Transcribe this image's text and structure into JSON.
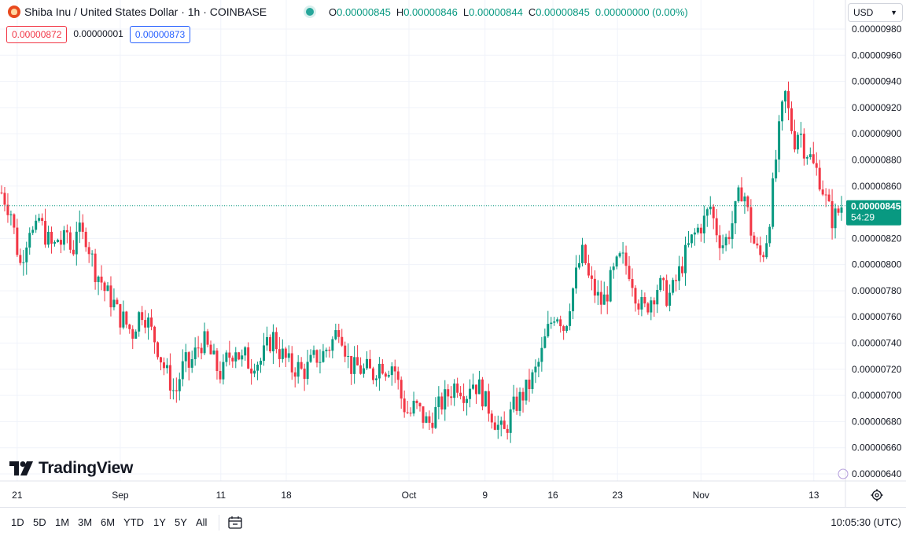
{
  "header": {
    "symbol_title": "Shiba Inu / United States Dollar · 1h · COINBASE",
    "ohlc": [
      {
        "k": "O",
        "v": "0.00000845"
      },
      {
        "k": "H",
        "v": "0.00000846"
      },
      {
        "k": "L",
        "v": "0.00000844"
      },
      {
        "k": "C",
        "v": "0.00000845"
      }
    ],
    "change": "0.00000000 (0.00%)"
  },
  "chips": {
    "sell": "0.00000872",
    "spread": "0.00000001",
    "buy": "0.00000873"
  },
  "currency": {
    "selected": "USD"
  },
  "bottom_bar": {
    "ranges": [
      "1D",
      "5D",
      "1M",
      "3M",
      "6M",
      "YTD",
      "1Y",
      "5Y",
      "All"
    ],
    "clock": "10:05:30 (UTC)"
  },
  "branding": {
    "name": "TradingView"
  },
  "colors": {
    "up": "#089981",
    "down": "#f23645",
    "accent": "#2962ff",
    "current_price_bg": "#089981"
  },
  "icons": {
    "settings": "gear-icon",
    "date_range": "calendar-icon",
    "status": "market-status-dot",
    "logo": "shiba-inu-icon"
  },
  "chart_data": {
    "type": "candlestick",
    "interval": "1h",
    "ylim": [
      6.3e-06,
      9.9e-06
    ],
    "y_ticks": [
      {
        "v": 9.8e-06,
        "label": "0.00000980"
      },
      {
        "v": 9.6e-06,
        "label": "0.00000960"
      },
      {
        "v": 9.4e-06,
        "label": "0.00000940"
      },
      {
        "v": 9.2e-06,
        "label": "0.00000920"
      },
      {
        "v": 9e-06,
        "label": "0.00000900"
      },
      {
        "v": 8.8e-06,
        "label": "0.00000880"
      },
      {
        "v": 8.6e-06,
        "label": "0.00000860"
      },
      {
        "v": 8.2e-06,
        "label": "0.00000820"
      },
      {
        "v": 8e-06,
        "label": "0.00000800"
      },
      {
        "v": 7.8e-06,
        "label": "0.00000780"
      },
      {
        "v": 7.6e-06,
        "label": "0.00000760"
      },
      {
        "v": 7.4e-06,
        "label": "0.00000740"
      },
      {
        "v": 7.2e-06,
        "label": "0.00000720"
      },
      {
        "v": 7e-06,
        "label": "0.00000700"
      },
      {
        "v": 6.8e-06,
        "label": "0.00000680"
      },
      {
        "v": 6.6e-06,
        "label": "0.00000660"
      },
      {
        "v": 6.4e-06,
        "label": "0.00000640"
      }
    ],
    "x_ticks": [
      "21",
      "Sep",
      "11",
      "18",
      "Oct",
      "9",
      "16",
      "23",
      "Nov",
      "13"
    ],
    "x_tick_positions": [
      0.021,
      0.147,
      0.27,
      0.35,
      0.5,
      0.593,
      0.676,
      0.755,
      0.857,
      0.995
    ],
    "current_price": {
      "value": 8.45e-06,
      "label": "0.00000845",
      "countdown": "54:29"
    },
    "closes": [
      8.55e-06,
      8.48e-06,
      8.4e-06,
      8.18e-06,
      8e-06,
      8.15e-06,
      8.3e-06,
      8.2e-06,
      8.35e-06,
      8.25e-06,
      8.18e-06,
      8.12e-06,
      8.2e-06,
      8.15e-06,
      8.25e-06,
      8.05e-06,
      8.3e-06,
      8.2e-06,
      8.22e-06,
      8.08e-06,
      7.95e-06,
      7.9e-06,
      7.8e-06,
      7.75e-06,
      7.7e-06,
      7.6e-06,
      7.58e-06,
      7.52e-06,
      7.48e-06,
      7.6e-06,
      7.65e-06,
      7.58e-06,
      7.48e-06,
      7.4e-06,
      7.28e-06,
      7.18e-06,
      7.1e-06,
      7e-06,
      7.15e-06,
      7.25e-06,
      7.22e-06,
      7.3e-06,
      7.38e-06,
      7.42e-06,
      7.35e-06,
      7.28e-06,
      7.2e-06,
      7.15e-06,
      7.28e-06,
      7.32e-06,
      7.38e-06,
      7.25e-06,
      7.3e-06,
      7.22e-06,
      7.28e-06,
      7.25e-06,
      7.32e-06,
      7.4e-06,
      7.45e-06,
      7.35e-06,
      7.3e-06,
      7.25e-06,
      7.2e-06,
      7.22e-06,
      7.18e-06,
      7.2e-06,
      7.25e-06,
      7.3e-06,
      7.28e-06,
      7.35e-06,
      7.38e-06,
      7.45e-06,
      7.55e-06,
      7.4e-06,
      7.25e-06,
      7.2e-06,
      7.22e-06,
      7.18e-06,
      7.2e-06,
      7.15e-06,
      7.22e-06,
      7.25e-06,
      7.2e-06,
      7.25e-06,
      7.18e-06,
      7e-06,
      6.9e-06,
      6.85e-06,
      6.92e-06,
      6.88e-06,
      6.82e-06,
      6.78e-06,
      6.85e-06,
      6.9e-06,
      6.95e-06,
      7e-06,
      7.05e-06,
      7.1e-06,
      7.06e-06,
      7e-06,
      7.12e-06,
      7.08e-06,
      7.05e-06,
      6.95e-06,
      6.9e-06,
      6.82e-06,
      6.75e-06,
      6.7e-06,
      6.8e-06,
      6.9e-06,
      6.95e-06,
      7e-06,
      7.05e-06,
      7.12e-06,
      7.2e-06,
      7.3e-06,
      7.45e-06,
      7.55e-06,
      7.65e-06,
      7.6e-06,
      7.5e-06,
      7.7e-06,
      7.85e-06,
      8e-06,
      8.1e-06,
      7.9e-06,
      7.82e-06,
      7.75e-06,
      7.7e-06,
      7.78e-06,
      7.9e-06,
      7.98e-06,
      8.05e-06,
      8e-06,
      7.95e-06,
      7.8e-06,
      7.7e-06,
      7.65e-06,
      7.72e-06,
      7.78e-06,
      7.85e-06,
      7.8e-06,
      7.75e-06,
      7.8e-06,
      7.9e-06,
      8e-06,
      8.1e-06,
      8.18e-06,
      8.25e-06,
      8.3e-06,
      8.35e-06,
      8.45e-06,
      8.3e-06,
      8.2e-06,
      8.15e-06,
      8.25e-06,
      8.35e-06,
      8.5e-06,
      8.6e-06,
      8.4e-06,
      8.2e-06,
      8.1e-06,
      8.05e-06,
      8.2e-06,
      8.45e-06,
      8.8e-06,
      9.1e-06,
      9.3e-06,
      9.1e-06,
      8.95e-06,
      9.05e-06,
      8.9e-06,
      8.85e-06,
      8.75e-06,
      8.7e-06,
      8.58e-06,
      8.45e-06,
      8.35e-06,
      8.38e-06,
      8.45e-06
    ]
  }
}
